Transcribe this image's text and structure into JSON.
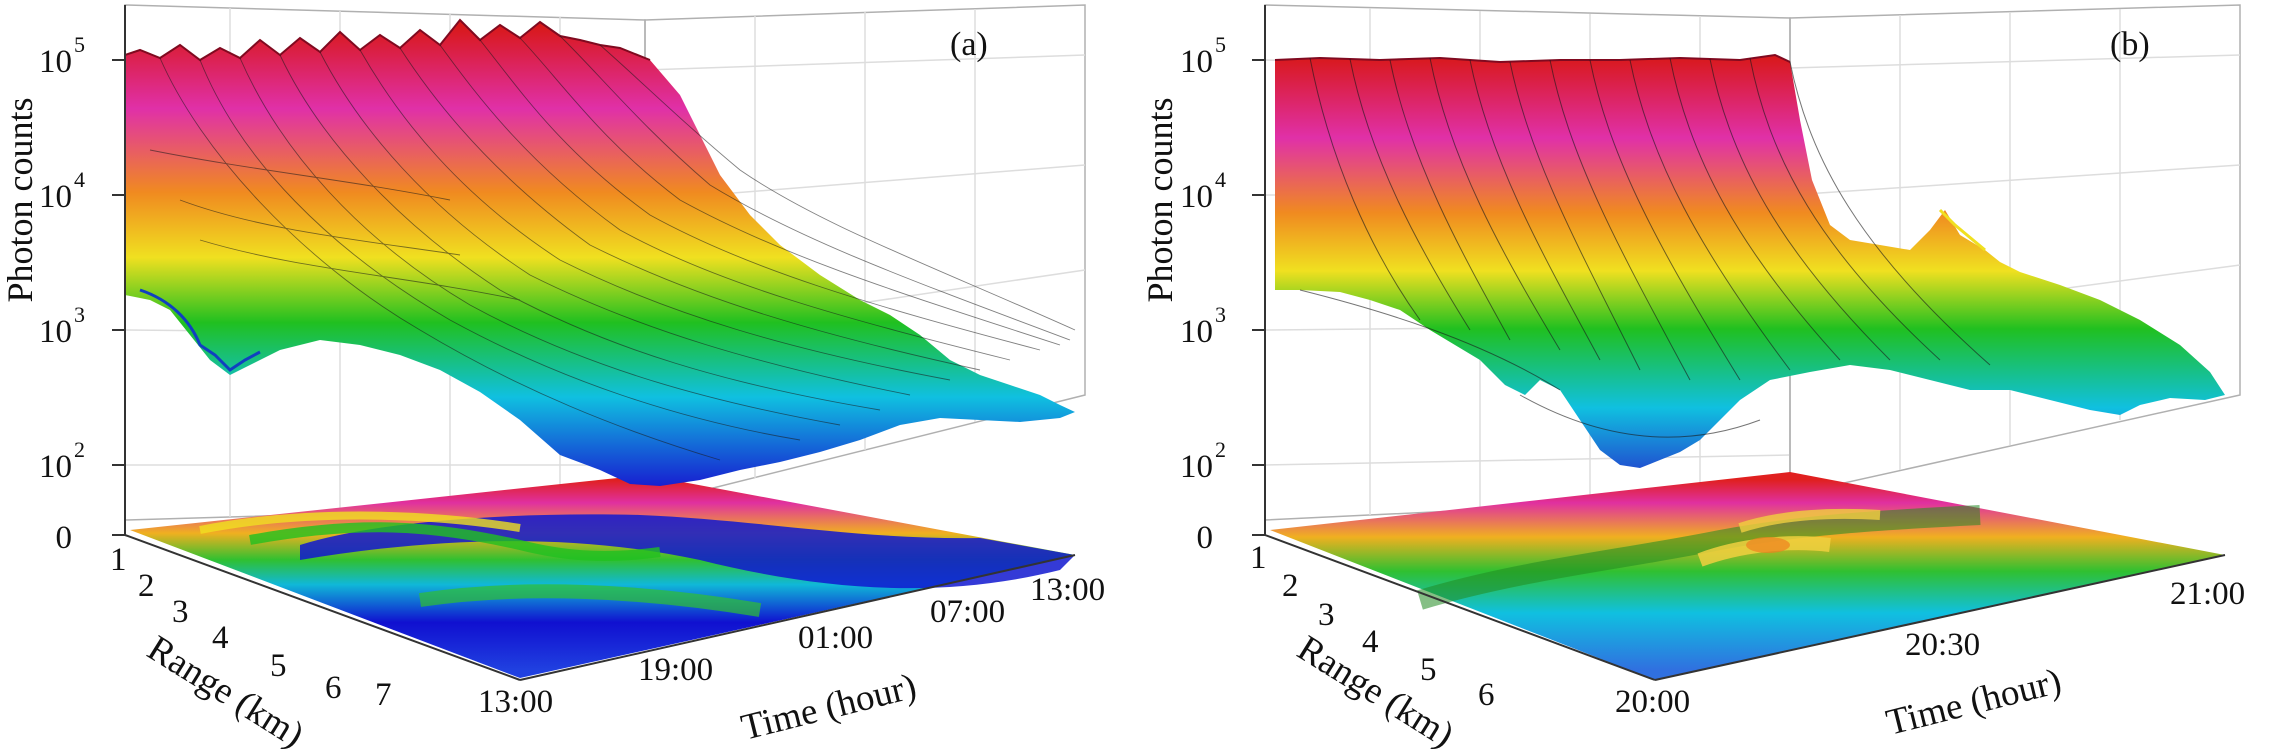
{
  "chart_data": [
    {
      "type": "surface3d",
      "panel_label": "(a)",
      "zlabel": "Photon counts",
      "z_scale": "log",
      "z_ticks": [
        {
          "base": "10",
          "exp": "5",
          "value": 100000
        },
        {
          "base": "10",
          "exp": "4",
          "value": 10000
        },
        {
          "base": "10",
          "exp": "3",
          "value": 1000
        },
        {
          "base": "10",
          "exp": "2",
          "value": 100
        }
      ],
      "z_floor_label": "0",
      "ylabel": "Range (km)",
      "y_ticks": [
        "1",
        "2",
        "3",
        "4",
        "5",
        "6",
        "7"
      ],
      "xlabel": "Time (hour)",
      "x_ticks": [
        "13:00",
        "19:00",
        "01:00",
        "07:00",
        "13:00"
      ],
      "projection": "filled contour on floor",
      "colormap": [
        "#e02020",
        "#e030a0",
        "#f08020",
        "#f0e020",
        "#20c020",
        "#10c0e0",
        "#1010d0"
      ],
      "grid": true
    },
    {
      "type": "surface3d",
      "panel_label": "(b)",
      "zlabel": "Photon counts",
      "z_scale": "log",
      "z_ticks": [
        {
          "base": "10",
          "exp": "5",
          "value": 100000
        },
        {
          "base": "10",
          "exp": "4",
          "value": 10000
        },
        {
          "base": "10",
          "exp": "3",
          "value": 1000
        },
        {
          "base": "10",
          "exp": "2",
          "value": 100
        }
      ],
      "z_floor_label": "0",
      "ylabel": "Range (km)",
      "y_ticks": [
        "1",
        "2",
        "3",
        "4",
        "5",
        "6"
      ],
      "xlabel": "Time (hour)",
      "x_ticks": [
        "20:00",
        "20:30",
        "21:00"
      ],
      "projection": "filled contour on floor",
      "colormap": [
        "#e02020",
        "#e030a0",
        "#f08020",
        "#f0e020",
        "#20c020",
        "#10c0e0",
        "#1010d0"
      ],
      "grid": true
    }
  ]
}
